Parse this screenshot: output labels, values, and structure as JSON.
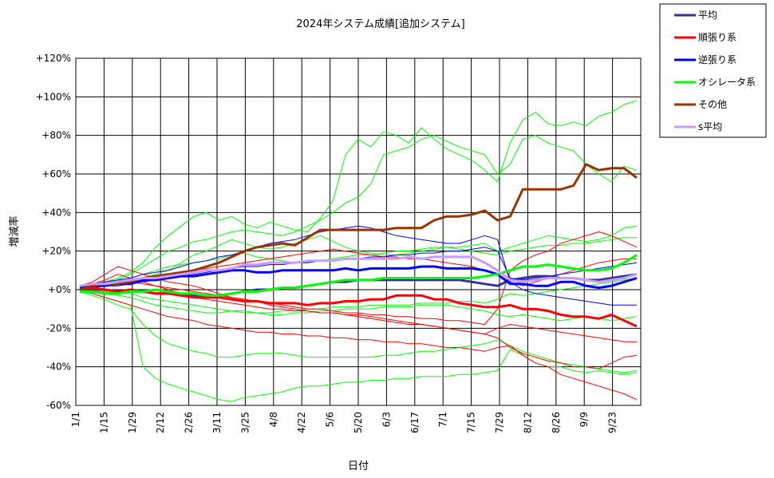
{
  "chart_data": {
    "type": "line",
    "title": "2024年システム成績[追加システム]",
    "xlabel": "日付",
    "ylabel": "増減率",
    "ylim": [
      -60,
      120
    ],
    "y_ticks": [
      "+120%",
      "+100%",
      "+80%",
      "+60%",
      "+40%",
      "+20%",
      "+0%",
      "-20%",
      "-40%",
      "-60%"
    ],
    "x_ticks": [
      "1/1",
      "1/15",
      "1/29",
      "2/12",
      "2/26",
      "3/11",
      "3/25",
      "4/8",
      "4/22",
      "5/6",
      "5/20",
      "6/3",
      "6/17",
      "7/1",
      "7/15",
      "7/29",
      "8/12",
      "8/26",
      "9/9",
      "9/23"
    ],
    "grid": true,
    "legend_position": "right",
    "series": [
      {
        "name": "平均",
        "color": "#333399",
        "width": 3,
        "legend": true,
        "values": [
          0,
          0,
          0,
          -1,
          -1,
          -1,
          -2,
          -2,
          -3,
          -3,
          -3,
          -3,
          -2,
          -1,
          0,
          0,
          1,
          1,
          2,
          3,
          4,
          4,
          5,
          5,
          5,
          5,
          5,
          5,
          5,
          5,
          5,
          4,
          3,
          2,
          5,
          6,
          7,
          7,
          6,
          6,
          5,
          5,
          6,
          7,
          8
        ]
      },
      {
        "name": "順張り系",
        "color": "#ff0000",
        "width": 3,
        "legend": true,
        "values": [
          0,
          1,
          0,
          -1,
          0,
          -1,
          -2,
          -2,
          -3,
          -4,
          -4,
          -4,
          -5,
          -6,
          -6,
          -7,
          -7,
          -7,
          -8,
          -7,
          -7,
          -6,
          -6,
          -5,
          -5,
          -3,
          -3,
          -3,
          -5,
          -5,
          -7,
          -8,
          -9,
          -9,
          -8,
          -10,
          -10,
          -11,
          -13,
          -14,
          -14,
          -15,
          -13,
          -16,
          -19
        ]
      },
      {
        "name": "逆張り系",
        "color": "#0000ff",
        "width": 3,
        "legend": true,
        "values": [
          1,
          2,
          2,
          3,
          3,
          5,
          5,
          6,
          7,
          7,
          8,
          9,
          10,
          10,
          9,
          9,
          10,
          10,
          10,
          10,
          10,
          11,
          10,
          11,
          11,
          11,
          11,
          12,
          12,
          11,
          11,
          11,
          10,
          8,
          3,
          3,
          2,
          2,
          4,
          4,
          2,
          1,
          2,
          4,
          6
        ]
      },
      {
        "name": "オシレータ系",
        "color": "#00ff00",
        "width": 3,
        "legend": true,
        "values": [
          -1,
          -1,
          -2,
          -2,
          -1,
          -1,
          0,
          -1,
          -2,
          -2,
          -3,
          -3,
          -2,
          -1,
          -1,
          0,
          1,
          1,
          2,
          3,
          4,
          5,
          5,
          5,
          6,
          6,
          6,
          6,
          6,
          6,
          6,
          6,
          7,
          8,
          10,
          12,
          12,
          13,
          12,
          11,
          10,
          10,
          11,
          14,
          18
        ]
      },
      {
        "name": "その他",
        "color": "#993300",
        "width": 3,
        "legend": true,
        "values": [
          0,
          2,
          3,
          3,
          4,
          6,
          7,
          8,
          9,
          10,
          12,
          14,
          17,
          20,
          22,
          23,
          24,
          23,
          27,
          31,
          31,
          31,
          31,
          31,
          31,
          32,
          32,
          32,
          36,
          38,
          38,
          39,
          41,
          36,
          38,
          52,
          52,
          52,
          52,
          54,
          65,
          62,
          63,
          63,
          58
        ]
      },
      {
        "name": "s平均",
        "color": "#cc99ff",
        "width": 3,
        "legend": true,
        "values": [
          2,
          3,
          3,
          4,
          5,
          6,
          6,
          7,
          8,
          9,
          10,
          10,
          11,
          13,
          13,
          14,
          14,
          14,
          15,
          15,
          15,
          16,
          16,
          16,
          16,
          16,
          17,
          16,
          17,
          17,
          17,
          17,
          14,
          10,
          5,
          4,
          5,
          6,
          6,
          6,
          5,
          4,
          5,
          6,
          8
        ]
      },
      {
        "name": "",
        "color": "#00ff00",
        "width": 1,
        "legend": false,
        "values": [
          0,
          2,
          4,
          6,
          9,
          14,
          22,
          28,
          33,
          38,
          40,
          36,
          38,
          34,
          32,
          35,
          33,
          31,
          30,
          37,
          46,
          70,
          78,
          74,
          82,
          80,
          76,
          84,
          78,
          73,
          70,
          67,
          62,
          56,
          76,
          88,
          92,
          86,
          85,
          87,
          85,
          90,
          92,
          96,
          98
        ]
      },
      {
        "name": "",
        "color": "#00ff00",
        "width": 1,
        "legend": false,
        "values": [
          -1,
          -2,
          -4,
          -6,
          -8,
          -40,
          -46,
          -49,
          -51,
          -53,
          -55,
          -57,
          -58,
          -56,
          -55,
          -54,
          -53,
          -51,
          -50,
          -50,
          -49,
          -48,
          -48,
          -47,
          -47,
          -46,
          -46,
          -45,
          -45,
          -45,
          -44,
          -44,
          -43,
          -42,
          -31,
          -34,
          -38,
          -40,
          -40,
          -42,
          -43,
          -42,
          -43,
          -44,
          -43
        ]
      },
      {
        "name": "",
        "color": "#00ff00",
        "width": 1,
        "legend": false,
        "values": [
          0,
          1,
          3,
          5,
          8,
          12,
          16,
          20,
          22,
          25,
          26,
          28,
          30,
          31,
          30,
          29,
          28,
          30,
          33,
          36,
          40,
          45,
          48,
          55,
          70,
          72,
          74,
          78,
          80,
          77,
          74,
          72,
          70,
          60,
          65,
          78,
          80,
          76,
          74,
          72,
          65,
          60,
          56,
          64,
          62
        ]
      },
      {
        "name": "",
        "color": "#00ff00",
        "width": 1,
        "legend": false,
        "values": [
          -1,
          -3,
          -5,
          -8,
          -10,
          -18,
          -24,
          -28,
          -30,
          -32,
          -33,
          -35,
          -35,
          -34,
          -33,
          -33,
          -33,
          -34,
          -35,
          -35,
          -35,
          -35,
          -35,
          -35,
          -34,
          -34,
          -33,
          -32,
          -32,
          -31,
          -30,
          -29,
          -28,
          -26,
          -29,
          -32,
          -34,
          -36,
          -38,
          -39,
          -40,
          -41,
          -42,
          -43,
          -42
        ]
      },
      {
        "name": "",
        "color": "#00ff00",
        "width": 1,
        "legend": false,
        "values": [
          1,
          2,
          4,
          5,
          4,
          6,
          8,
          10,
          14,
          18,
          20,
          23,
          26,
          24,
          22,
          21,
          22,
          24,
          26,
          28,
          25,
          22,
          20,
          19,
          18,
          18,
          19,
          20,
          21,
          22,
          22,
          23,
          24,
          20,
          22,
          24,
          26,
          28,
          27,
          26,
          25,
          26,
          28,
          32,
          33
        ]
      },
      {
        "name": "",
        "color": "#00ff00",
        "width": 1,
        "legend": false,
        "values": [
          0,
          -1,
          -2,
          -3,
          -4,
          -6,
          -8,
          -9,
          -10,
          -11,
          -12,
          -12,
          -11,
          -11,
          -12,
          -12,
          -11,
          -11,
          -10,
          -10,
          -9,
          -9,
          -9,
          -8,
          -8,
          -8,
          -8,
          -7,
          -7,
          -7,
          -6,
          -6,
          -7,
          -5,
          -2,
          -3,
          -2,
          -1,
          0,
          1,
          2,
          3,
          4,
          5,
          6
        ]
      },
      {
        "name": "",
        "color": "#00ff00",
        "width": 1,
        "legend": false,
        "values": [
          2,
          3,
          4,
          5,
          6,
          8,
          10,
          12,
          13,
          14,
          15,
          16,
          18,
          19,
          17,
          16,
          15,
          14,
          14,
          15,
          16,
          17,
          18,
          18,
          19,
          20,
          20,
          21,
          22,
          22,
          21,
          20,
          19,
          18,
          20,
          21,
          22,
          23,
          23,
          24,
          24,
          25,
          26,
          27,
          27
        ]
      },
      {
        "name": "",
        "color": "#00ff00",
        "width": 1,
        "legend": false,
        "values": [
          0,
          -1,
          -1,
          -2,
          -2,
          -4,
          -5,
          -6,
          -7,
          -8,
          -9,
          -10,
          -11,
          -12,
          -12,
          -13,
          -13,
          -12,
          -12,
          -11,
          -11,
          -10,
          -10,
          -10,
          -9,
          -9,
          -9,
          -8,
          -8,
          -8,
          -9,
          -10,
          -11,
          -13,
          -14,
          -13,
          -14,
          -15,
          -16,
          -15,
          -14,
          -15,
          -16,
          -15,
          -14
        ]
      },
      {
        "name": "",
        "color": "#ff0000",
        "width": 1,
        "legend": false,
        "values": [
          0,
          -2,
          -4,
          -6,
          -8,
          -10,
          -12,
          -14,
          -15,
          -16,
          -18,
          -19,
          -20,
          -21,
          -22,
          -22,
          -23,
          -23,
          -24,
          -24,
          -25,
          -25,
          -26,
          -26,
          -27,
          -27,
          -28,
          -28,
          -29,
          -30,
          -30,
          -31,
          -32,
          -30,
          -29,
          -34,
          -38,
          -40,
          -44,
          -46,
          -48,
          -50,
          -52,
          -54,
          -57
        ]
      },
      {
        "name": "",
        "color": "#ff0000",
        "width": 1,
        "legend": false,
        "values": [
          1,
          3,
          5,
          8,
          6,
          4,
          2,
          0,
          -2,
          -4,
          -5,
          -6,
          -7,
          -8,
          -9,
          -10,
          -10,
          -11,
          -11,
          -12,
          -12,
          -13,
          -13,
          -14,
          -15,
          -16,
          -17,
          -18,
          -19,
          -20,
          -21,
          -22,
          -23,
          -25,
          -30,
          -33,
          -35,
          -37,
          -38,
          -40,
          -40,
          -41,
          -38,
          -35,
          -34
        ]
      },
      {
        "name": "",
        "color": "#ff0000",
        "width": 1,
        "legend": false,
        "values": [
          0,
          1,
          2,
          3,
          4,
          3,
          2,
          1,
          0,
          -1,
          -2,
          -3,
          -4,
          -5,
          -6,
          -7,
          -8,
          -9,
          -10,
          -10,
          -11,
          -12,
          -12,
          -13,
          -13,
          -14,
          -14,
          -15,
          -15,
          -16,
          -16,
          -17,
          -18,
          -10,
          10,
          15,
          18,
          20,
          24,
          26,
          28,
          30,
          28,
          25,
          22
        ]
      },
      {
        "name": "",
        "color": "#ff0000",
        "width": 1,
        "legend": false,
        "values": [
          2,
          4,
          8,
          12,
          10,
          8,
          6,
          4,
          3,
          2,
          0,
          -2,
          -4,
          -5,
          -6,
          -8,
          -9,
          -10,
          -11,
          -12,
          -12,
          -13,
          -14,
          -15,
          -16,
          -17,
          -18,
          -18,
          -19,
          -20,
          -21,
          -22,
          -23,
          -20,
          -18,
          -19,
          -20,
          -21,
          -22,
          -23,
          -24,
          -25,
          -26,
          -27,
          -27
        ]
      },
      {
        "name": "",
        "color": "#ff0000",
        "width": 1,
        "legend": false,
        "values": [
          0,
          2,
          3,
          4,
          5,
          6,
          7,
          8,
          9,
          10,
          11,
          12,
          13,
          14,
          15,
          16,
          17,
          18,
          19,
          20,
          21,
          20,
          19,
          18,
          17,
          17,
          16,
          16,
          15,
          14,
          13,
          12,
          10,
          8,
          4,
          2,
          4,
          6,
          8,
          10,
          12,
          14,
          15,
          16,
          16
        ]
      },
      {
        "name": "",
        "color": "#0000ff",
        "width": 1,
        "legend": false,
        "values": [
          2,
          3,
          4,
          5,
          6,
          8,
          9,
          10,
          12,
          14,
          15,
          17,
          18,
          20,
          22,
          24,
          25,
          26,
          28,
          30,
          31,
          32,
          33,
          32,
          30,
          28,
          27,
          26,
          25,
          24,
          24,
          26,
          28,
          26,
          4,
          0,
          -2,
          -3,
          -4,
          -5,
          -6,
          -7,
          -8,
          -8,
          -8
        ]
      },
      {
        "name": "",
        "color": "#0000ff",
        "width": 1,
        "legend": false,
        "values": [
          1,
          1,
          2,
          2,
          3,
          4,
          5,
          6,
          7,
          8,
          9,
          10,
          11,
          12,
          12,
          13,
          13,
          14,
          14,
          15,
          15,
          16,
          16,
          17,
          17,
          18,
          18,
          19,
          19,
          20,
          20,
          21,
          22,
          20,
          6,
          5,
          6,
          7,
          8,
          9,
          10,
          11,
          12,
          13,
          14
        ]
      }
    ]
  }
}
